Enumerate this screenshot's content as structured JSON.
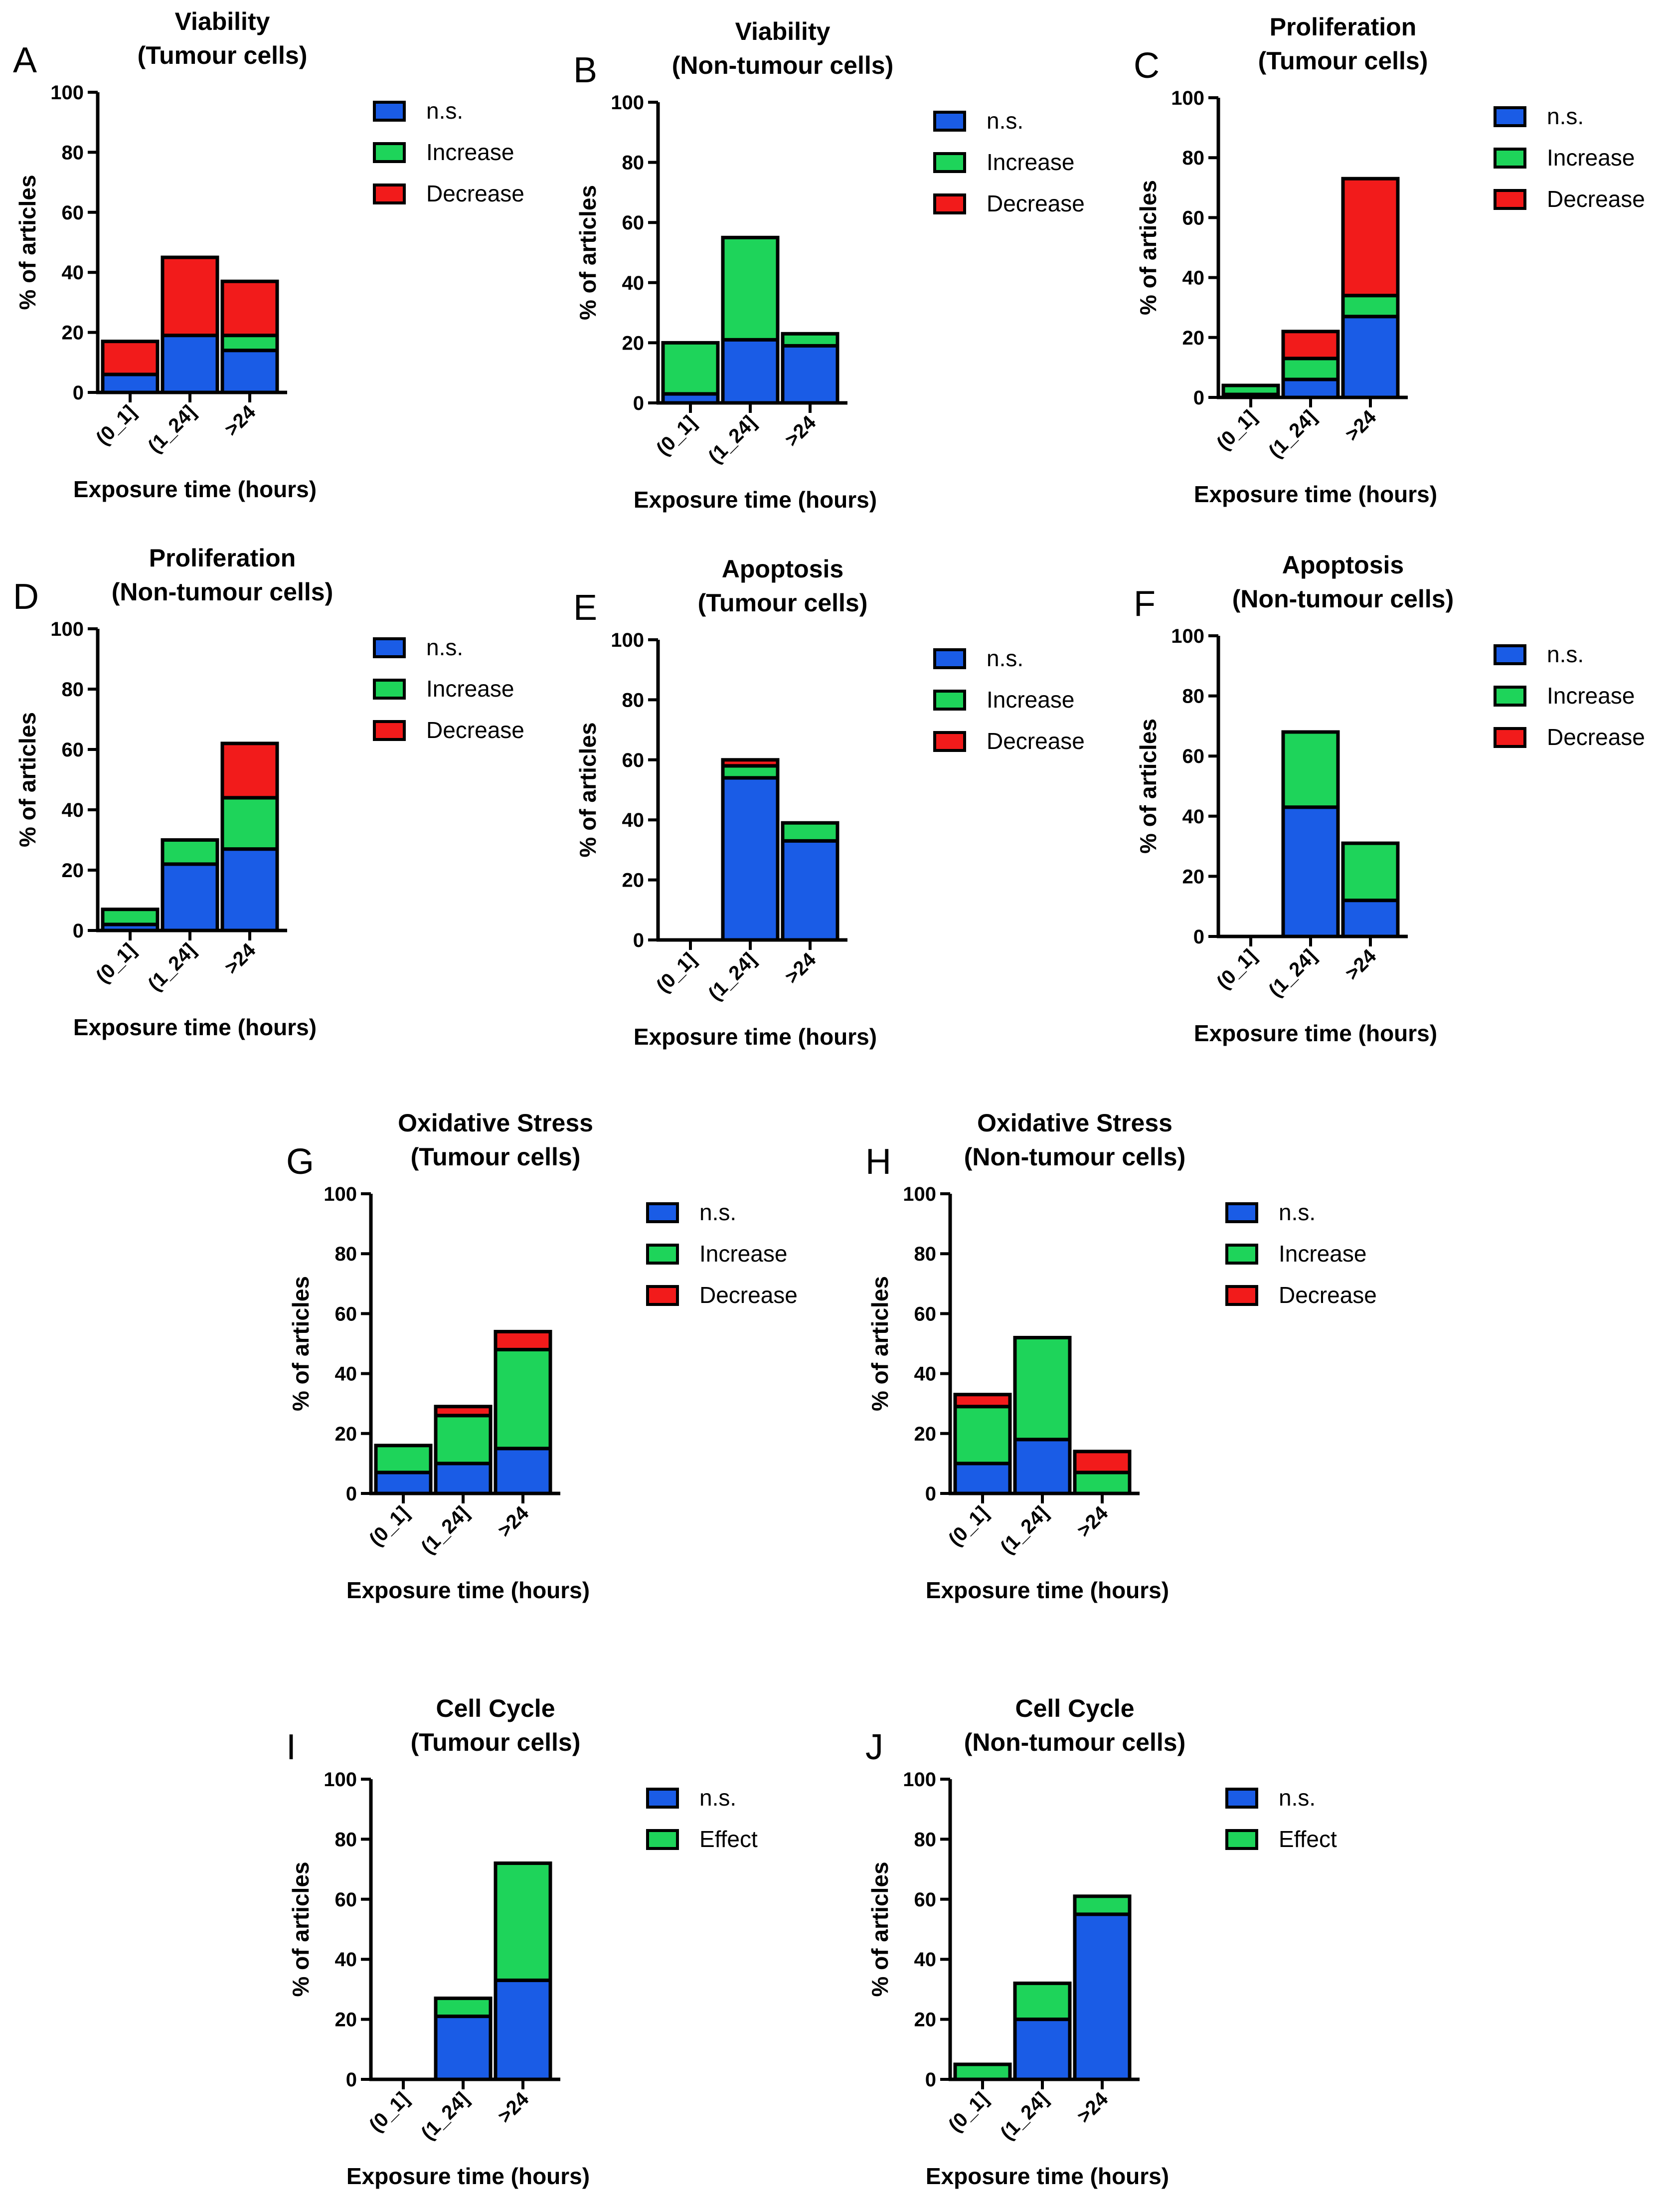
{
  "colors": {
    "ns": "#1a5ce6",
    "increase": "#1ed45a",
    "decrease": "#f21b1b",
    "effect": "#1ed45a",
    "stroke": "#000000"
  },
  "chart_data": [
    {
      "letter": "A",
      "type": "bar",
      "stacked": true,
      "title": [
        "Viability",
        "(Tumour cells)"
      ],
      "xlabel": "Exposure time (hours)",
      "ylabel": "% of articles",
      "ylim": [
        0,
        100
      ],
      "yticks": [
        "0",
        "20",
        "40",
        "60",
        "80",
        "100"
      ],
      "categories": [
        "(0_1]",
        "(1_24]",
        ">24"
      ],
      "series": [
        {
          "name": "n.s.",
          "color": "#1a5ce6",
          "values": [
            6,
            19,
            14
          ]
        },
        {
          "name": "Increase",
          "color": "#1ed45a",
          "values": [
            0,
            0,
            5
          ]
        },
        {
          "name": "Decrease",
          "color": "#f21b1b",
          "values": [
            11,
            26,
            18
          ]
        }
      ]
    },
    {
      "letter": "B",
      "type": "bar",
      "stacked": true,
      "title": [
        "Viability",
        "(Non-tumour cells)"
      ],
      "xlabel": "Exposure time (hours)",
      "ylabel": "% of articles",
      "ylim": [
        0,
        100
      ],
      "yticks": [
        "0",
        "20",
        "40",
        "60",
        "80",
        "100"
      ],
      "categories": [
        "(0_1]",
        "(1_24]",
        ">24"
      ],
      "series": [
        {
          "name": "n.s.",
          "color": "#1a5ce6",
          "values": [
            3,
            21,
            19
          ]
        },
        {
          "name": "Increase",
          "color": "#1ed45a",
          "values": [
            17,
            34,
            4
          ]
        },
        {
          "name": "Decrease",
          "color": "#f21b1b",
          "values": [
            0,
            0,
            0
          ]
        }
      ]
    },
    {
      "letter": "C",
      "type": "bar",
      "stacked": true,
      "title": [
        "Proliferation",
        "(Tumour cells)"
      ],
      "xlabel": "Exposure time (hours)",
      "ylabel": "% of articles",
      "ylim": [
        0,
        100
      ],
      "yticks": [
        "0",
        "20",
        "40",
        "60",
        "80",
        "100"
      ],
      "categories": [
        "(0_1]",
        "(1_24]",
        ">24"
      ],
      "series": [
        {
          "name": "n.s.",
          "color": "#1a5ce6",
          "values": [
            1,
            6,
            27
          ]
        },
        {
          "name": "Increase",
          "color": "#1ed45a",
          "values": [
            3,
            7,
            7
          ]
        },
        {
          "name": "Decrease",
          "color": "#f21b1b",
          "values": [
            0,
            9,
            39
          ]
        }
      ]
    },
    {
      "letter": "D",
      "type": "bar",
      "stacked": true,
      "title": [
        "Proliferation",
        "(Non-tumour cells)"
      ],
      "xlabel": "Exposure time (hours)",
      "ylabel": "% of articles",
      "ylim": [
        0,
        100
      ],
      "yticks": [
        "0",
        "20",
        "40",
        "60",
        "80",
        "100"
      ],
      "categories": [
        "(0_1]",
        "(1_24]",
        ">24"
      ],
      "series": [
        {
          "name": "n.s.",
          "color": "#1a5ce6",
          "values": [
            2,
            22,
            27
          ]
        },
        {
          "name": "Increase",
          "color": "#1ed45a",
          "values": [
            5,
            8,
            17
          ]
        },
        {
          "name": "Decrease",
          "color": "#f21b1b",
          "values": [
            0,
            0,
            18
          ]
        }
      ]
    },
    {
      "letter": "E",
      "type": "bar",
      "stacked": true,
      "title": [
        "Apoptosis",
        "(Tumour cells)"
      ],
      "xlabel": "Exposure time (hours)",
      "ylabel": "% of articles",
      "ylim": [
        0,
        100
      ],
      "yticks": [
        "0",
        "20",
        "40",
        "60",
        "80",
        "100"
      ],
      "categories": [
        "(0_1]",
        "(1_24]",
        ">24"
      ],
      "series": [
        {
          "name": "n.s.",
          "color": "#1a5ce6",
          "values": [
            0,
            54,
            33
          ]
        },
        {
          "name": "Increase",
          "color": "#1ed45a",
          "values": [
            0,
            4,
            6
          ]
        },
        {
          "name": "Decrease",
          "color": "#f21b1b",
          "values": [
            0,
            2,
            0
          ]
        }
      ]
    },
    {
      "letter": "F",
      "type": "bar",
      "stacked": true,
      "title": [
        "Apoptosis",
        "(Non-tumour cells)"
      ],
      "xlabel": "Exposure time (hours)",
      "ylabel": "% of articles",
      "ylim": [
        0,
        100
      ],
      "yticks": [
        "0",
        "20",
        "40",
        "60",
        "80",
        "100"
      ],
      "categories": [
        "(0_1]",
        "(1_24]",
        ">24"
      ],
      "series": [
        {
          "name": "n.s.",
          "color": "#1a5ce6",
          "values": [
            0,
            43,
            12
          ]
        },
        {
          "name": "Increase",
          "color": "#1ed45a",
          "values": [
            0,
            25,
            19
          ]
        },
        {
          "name": "Decrease",
          "color": "#f21b1b",
          "values": [
            0,
            0,
            0
          ]
        }
      ]
    },
    {
      "letter": "G",
      "type": "bar",
      "stacked": true,
      "title": [
        "Oxidative Stress",
        "(Tumour cells)"
      ],
      "xlabel": "Exposure time (hours)",
      "ylabel": "% of articles",
      "ylim": [
        0,
        100
      ],
      "yticks": [
        "0",
        "20",
        "40",
        "60",
        "80",
        "100"
      ],
      "categories": [
        "(0_1]",
        "(1_24]",
        ">24"
      ],
      "series": [
        {
          "name": "n.s.",
          "color": "#1a5ce6",
          "values": [
            7,
            10,
            15
          ]
        },
        {
          "name": "Increase",
          "color": "#1ed45a",
          "values": [
            9,
            16,
            33
          ]
        },
        {
          "name": "Decrease",
          "color": "#f21b1b",
          "values": [
            0,
            3,
            6
          ]
        }
      ]
    },
    {
      "letter": "H",
      "type": "bar",
      "stacked": true,
      "title": [
        "Oxidative Stress",
        "(Non-tumour cells)"
      ],
      "xlabel": "Exposure time (hours)",
      "ylabel": "% of articles",
      "ylim": [
        0,
        100
      ],
      "yticks": [
        "0",
        "20",
        "40",
        "60",
        "80",
        "100"
      ],
      "categories": [
        "(0_1]",
        "(1_24]",
        ">24"
      ],
      "series": [
        {
          "name": "n.s.",
          "color": "#1a5ce6",
          "values": [
            10,
            18,
            0
          ]
        },
        {
          "name": "Increase",
          "color": "#1ed45a",
          "values": [
            19,
            34,
            7
          ]
        },
        {
          "name": "Decrease",
          "color": "#f21b1b",
          "values": [
            4,
            0,
            7
          ]
        }
      ]
    },
    {
      "letter": "I",
      "type": "bar",
      "stacked": true,
      "title": [
        "Cell Cycle",
        "(Tumour cells)"
      ],
      "xlabel": "Exposure time (hours)",
      "ylabel": "% of articles",
      "ylim": [
        0,
        100
      ],
      "yticks": [
        "0",
        "20",
        "40",
        "60",
        "80",
        "100"
      ],
      "categories": [
        "(0_1]",
        "(1_24]",
        ">24"
      ],
      "series": [
        {
          "name": "n.s.",
          "color": "#1a5ce6",
          "values": [
            0,
            21,
            33
          ]
        },
        {
          "name": "Effect",
          "color": "#1ed45a",
          "values": [
            0,
            6,
            39
          ]
        }
      ]
    },
    {
      "letter": "J",
      "type": "bar",
      "stacked": true,
      "title": [
        "Cell Cycle",
        "(Non-tumour cells)"
      ],
      "xlabel": "Exposure time (hours)",
      "ylabel": "% of articles",
      "ylim": [
        0,
        100
      ],
      "yticks": [
        "0",
        "20",
        "40",
        "60",
        "80",
        "100"
      ],
      "categories": [
        "(0_1]",
        "(1_24]",
        ">24"
      ],
      "series": [
        {
          "name": "n.s.",
          "color": "#1a5ce6",
          "values": [
            0,
            20,
            55
          ]
        },
        {
          "name": "Effect",
          "color": "#1ed45a",
          "values": [
            5,
            12,
            6
          ]
        }
      ]
    }
  ]
}
